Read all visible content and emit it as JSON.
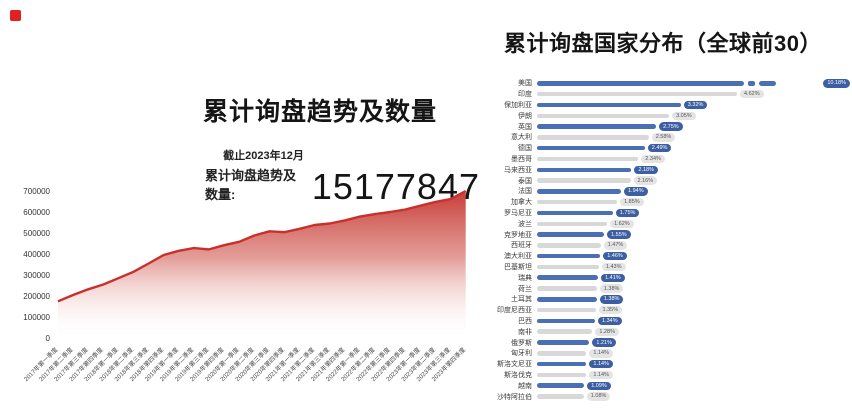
{
  "page": {
    "background": "#ffffff",
    "accent_red": "#c9302c",
    "accent_blue": "#4a6fb5"
  },
  "left_chart": {
    "title": "累计询盘趋势及数量",
    "as_of": "截止2023年12月",
    "total_label": "累计询盘趋势及数量:",
    "total_value": "15177847"
  },
  "right_chart": {
    "title": "累计询盘国家分布（全球前30）"
  },
  "chart_data": [
    {
      "type": "area",
      "title": "累计询盘趋势及数量",
      "x": [
        "2017年第一季度",
        "2017年第二季度",
        "2017年第三季度",
        "2017年第四季度",
        "2018年第一季度",
        "2018年第二季度",
        "2018年第三季度",
        "2018年第四季度",
        "2019年第一季度",
        "2019年第二季度",
        "2019年第三季度",
        "2019年第四季度",
        "2020年第一季度",
        "2020年第二季度",
        "2020年第三季度",
        "2020年第四季度",
        "2021年第一季度",
        "2021年第二季度",
        "2021年第三季度",
        "2021年第四季度",
        "2022年第一季度",
        "2022年第二季度",
        "2022年第三季度",
        "2022年第四季度",
        "2023年第一季度",
        "2023年第二季度",
        "2023年第三季度",
        "2023年第四季度"
      ],
      "values": [
        175000,
        205000,
        232000,
        255000,
        285000,
        315000,
        355000,
        395000,
        415000,
        428000,
        422000,
        442000,
        458000,
        488000,
        508000,
        504000,
        520000,
        538000,
        545000,
        560000,
        578000,
        590000,
        600000,
        612000,
        630000,
        648000,
        662000,
        700000
      ],
      "ylim": [
        0,
        700000
      ],
      "yticks": [
        0,
        100000,
        200000,
        300000,
        400000,
        500000,
        600000,
        700000
      ],
      "grid": false,
      "line_color": "#c9302c",
      "fill": "vertical gradient red to white"
    },
    {
      "type": "bar",
      "orientation": "horizontal",
      "title": "累计询盘国家分布（全球前30）",
      "categories": [
        "美国",
        "印度",
        "保加利亚",
        "伊朗",
        "英国",
        "意大利",
        "德国",
        "墨西哥",
        "马来西亚",
        "泰国",
        "法国",
        "加拿大",
        "罗马尼亚",
        "波兰",
        "克罗地亚",
        "西班牙",
        "澳大利亚",
        "巴基斯坦",
        "瑞典",
        "荷兰",
        "土耳其",
        "印度尼西亚",
        "巴西",
        "南非",
        "俄罗斯",
        "匈牙利",
        "斯洛文尼亚",
        "斯洛伐克",
        "越南",
        "沙特阿拉伯"
      ],
      "values": [
        10.18,
        4.62,
        3.32,
        3.05,
        2.75,
        2.58,
        2.49,
        2.34,
        2.18,
        2.16,
        1.94,
        1.85,
        1.75,
        1.62,
        1.55,
        1.47,
        1.46,
        1.43,
        1.41,
        1.38,
        1.38,
        1.35,
        1.34,
        1.28,
        1.21,
        1.14,
        1.14,
        1.14,
        1.09,
        1.08
      ],
      "labels": [
        "10.18%",
        "4.62%",
        "3.32%",
        "3.05%",
        "2.75%",
        "2.58%",
        "2.49%",
        "2.34%",
        "2.18%",
        "2.16%",
        "1.94%",
        "1.85%",
        "1.75%",
        "1.62%",
        "1.55%",
        "1.47%",
        "1.46%",
        "1.43%",
        "1.41%",
        "1.38%",
        "1.38%",
        "1.35%",
        "1.34%",
        "1.28%",
        "1.21%",
        "1.14%",
        "1.14%",
        "1.14%",
        "1.09%",
        "1.08%"
      ],
      "bar_color_odd_rows": "#4a6fb5",
      "bar_color_even_rows": "#d8d8d8",
      "axis_break_on_first_bar": true,
      "legend": "none"
    }
  ]
}
